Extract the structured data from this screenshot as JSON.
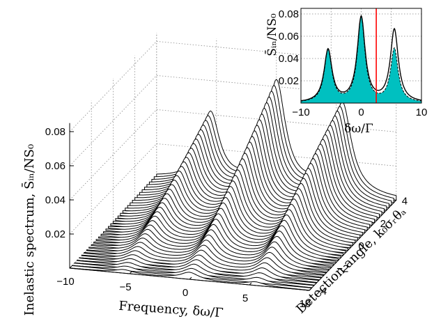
{
  "chart_data": [
    {
      "type": "area",
      "dimension": "3d-waterfall",
      "x": {
        "label": "Frequency, δω/Γ",
        "range": [
          -10,
          10
        ],
        "ticks": [
          "−10",
          "−5",
          "0",
          "5",
          "10"
        ]
      },
      "y": {
        "label": "Detection angle, k₀σᵣθₐ",
        "range": [
          -4,
          4
        ],
        "ticks": [
          "−4",
          "−2",
          "0",
          "2",
          "4"
        ]
      },
      "z": {
        "label": "Inelastic spectrum, S̄ᵢₙ/NS₀",
        "range": [
          0,
          0.085
        ],
        "ticks": [
          "0.02",
          "0.04",
          "0.06",
          "0.08"
        ]
      },
      "series": [
        {
          "peak_positions": [
            -5.5,
            0,
            5.5
          ],
          "peak_heights_at_angle_-4": [
            0.002,
            0.004,
            0.002
          ],
          "peak_heights_at_angle_4": [
            0.047,
            0.072,
            0.062
          ]
        }
      ],
      "grid": true
    },
    {
      "type": "line",
      "inset": true,
      "x": {
        "label": "δω/Γ",
        "range": [
          -10,
          10
        ],
        "ticks": [
          "−10",
          "0",
          "10"
        ]
      },
      "y": {
        "label": "S̄ᵢₙ/NS₀",
        "range": [
          0,
          0.085
        ],
        "ticks": [
          "0.02",
          "0.04",
          "0.06",
          "0.08"
        ]
      },
      "marker_x": 2.5,
      "colors": {
        "fill": "#00c0c0",
        "marker": "#ff0000",
        "line": "#000000"
      },
      "series": [
        {
          "style": "solid",
          "peaks": [
            [
              -5.5,
              0.047
            ],
            [
              0,
              0.076
            ],
            [
              5.5,
              0.065
            ]
          ]
        },
        {
          "style": "dashed",
          "peaks": [
            [
              -5.5,
              0.047
            ],
            [
              0,
              0.076
            ],
            [
              5.5,
              0.048
            ]
          ]
        }
      ],
      "grid": true
    }
  ]
}
